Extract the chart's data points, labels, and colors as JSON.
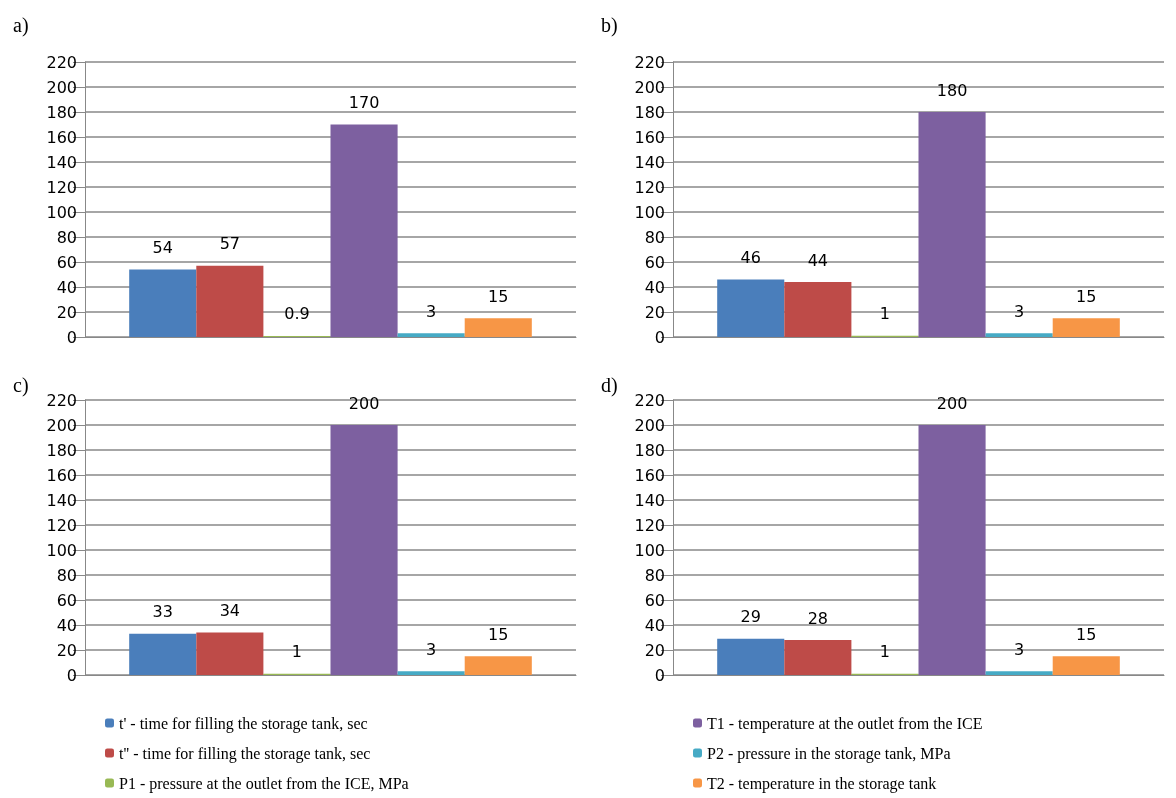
{
  "chart_data": [
    {
      "type": "bar",
      "title": "a)",
      "categories": [
        null
      ],
      "series": [
        {
          "color": "#4a7ebb",
          "values": [
            54
          ]
        },
        {
          "color": "#be4b48",
          "values": [
            57
          ]
        },
        {
          "color": "#98b954",
          "values": [
            0.9
          ]
        },
        {
          "color": "#7d60a0",
          "values": [
            170
          ]
        },
        {
          "color": "#46aac5",
          "values": [
            3
          ]
        },
        {
          "color": "#f79646",
          "values": [
            15
          ]
        }
      ],
      "ylim": [
        0,
        220
      ],
      "yticks": [
        0,
        20,
        40,
        60,
        80,
        100,
        120,
        140,
        160,
        180,
        200,
        220
      ],
      "grid": "y",
      "data_labels": true,
      "legend": false
    },
    {
      "type": "bar",
      "title": "b)",
      "categories": [
        null
      ],
      "series": [
        {
          "color": "#4a7ebb",
          "values": [
            46
          ]
        },
        {
          "color": "#be4b48",
          "values": [
            44
          ]
        },
        {
          "color": "#98b954",
          "values": [
            1
          ]
        },
        {
          "color": "#7d60a0",
          "values": [
            180
          ]
        },
        {
          "color": "#46aac5",
          "values": [
            3
          ]
        },
        {
          "color": "#f79646",
          "values": [
            15
          ]
        }
      ],
      "ylim": [
        0,
        220
      ],
      "yticks": [
        0,
        20,
        40,
        60,
        80,
        100,
        120,
        140,
        160,
        180,
        200,
        220
      ],
      "grid": "y",
      "data_labels": true,
      "legend": false
    },
    {
      "type": "bar",
      "title": "c)",
      "categories": [
        null
      ],
      "series": [
        {
          "name": "t' - time for filling the storage tank, sec",
          "color": "#4a7ebb",
          "values": [
            33
          ]
        },
        {
          "name": "t'' - time for filling the storage tank, sec",
          "color": "#be4b48",
          "values": [
            34
          ]
        },
        {
          "name": "P1 - pressure at the outlet from the ICE, MPa",
          "color": "#98b954",
          "values": [
            1
          ]
        },
        {
          "color": "#7d60a0",
          "values": [
            200
          ]
        },
        {
          "color": "#46aac5",
          "values": [
            3
          ]
        },
        {
          "color": "#f79646",
          "values": [
            15
          ]
        }
      ],
      "ylim": [
        0,
        220
      ],
      "yticks": [
        0,
        20,
        40,
        60,
        80,
        100,
        120,
        140,
        160,
        180,
        200,
        220
      ],
      "grid": "y",
      "data_labels": true,
      "legend": "bottom"
    },
    {
      "type": "bar",
      "title": "d)",
      "categories": [
        null
      ],
      "series": [
        {
          "color": "#4a7ebb",
          "values": [
            29
          ]
        },
        {
          "color": "#be4b48",
          "values": [
            28
          ]
        },
        {
          "color": "#98b954",
          "values": [
            1
          ]
        },
        {
          "name": "T1 - temperature at the outlet from the ICE",
          "color": "#7d60a0",
          "values": [
            200
          ]
        },
        {
          "name": "P2 - pressure in the storage tank, MPa",
          "color": "#46aac5",
          "values": [
            3
          ]
        },
        {
          "name": "T2 - temperature in the storage tank",
          "color": "#f79646",
          "values": [
            15
          ]
        }
      ],
      "ylim": [
        0,
        220
      ],
      "yticks": [
        0,
        20,
        40,
        60,
        80,
        100,
        120,
        140,
        160,
        180,
        200,
        220
      ],
      "grid": "y",
      "data_labels": true,
      "legend": "bottom"
    }
  ]
}
